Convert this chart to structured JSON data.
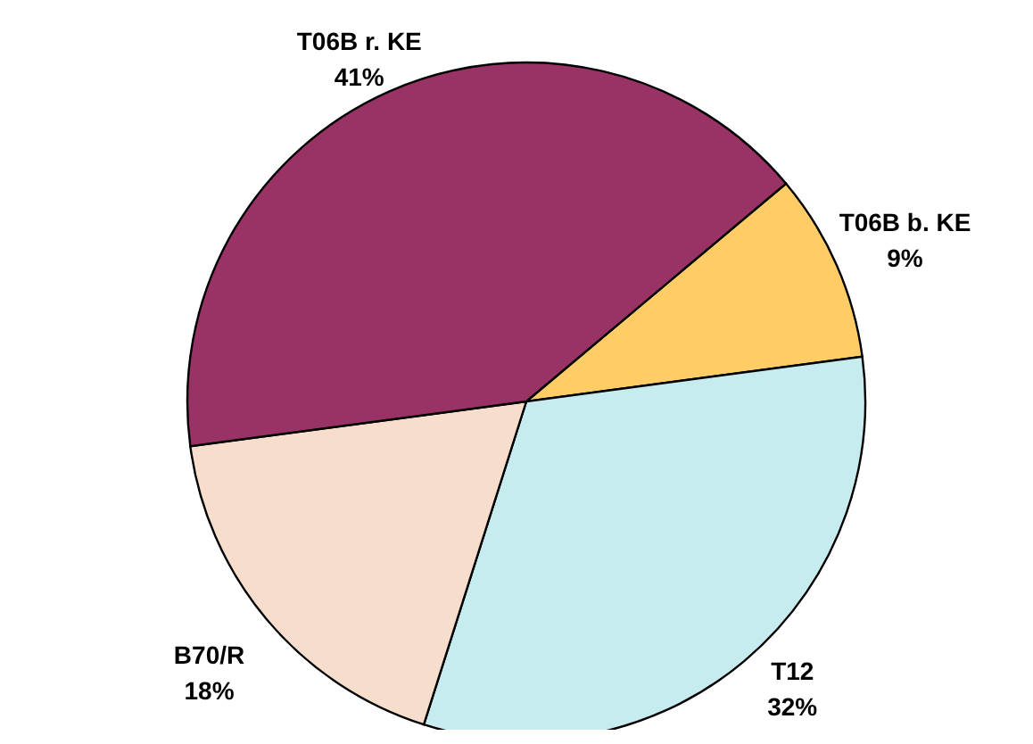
{
  "chart_data": {
    "type": "pie",
    "categories": [
      "T06B b. KE",
      "T12",
      "B70/R",
      "T06B r. KE"
    ],
    "values": [
      9,
      32,
      18,
      41
    ],
    "colors": [
      "#ffcc66",
      "#c6ecef",
      "#f7ddcb",
      "#993366"
    ],
    "value_labels": [
      "9%",
      "32%",
      "18%",
      "41%"
    ]
  }
}
